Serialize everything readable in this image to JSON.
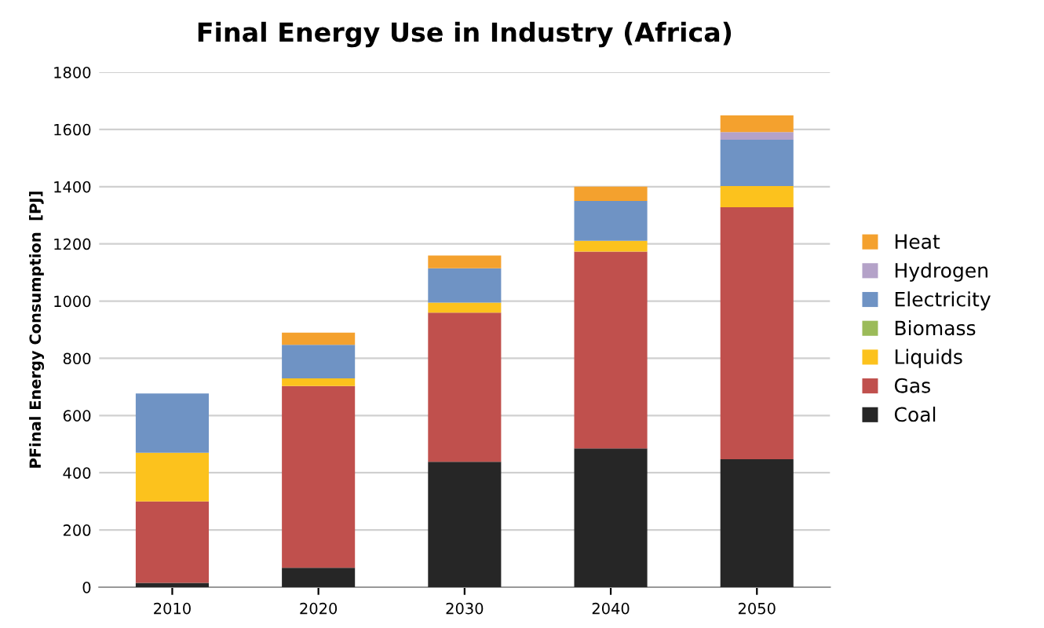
{
  "chart_data": {
    "type": "bar",
    "stacked": true,
    "title": "Final Energy Use in Industry (Africa)",
    "ylabel": "PFinal Energy Consumption  [PJ]",
    "categories": [
      "2010",
      "2020",
      "2030",
      "2040",
      "2050"
    ],
    "series": [
      {
        "name": "Coal",
        "color": "#262626",
        "values": [
          15,
          68,
          438,
          485,
          447
        ]
      },
      {
        "name": "Gas",
        "color": "#c0504d",
        "values": [
          285,
          635,
          522,
          688,
          881
        ]
      },
      {
        "name": "Liquids",
        "color": "#fcc21d",
        "values": [
          170,
          27,
          35,
          38,
          74
        ]
      },
      {
        "name": "Biomass",
        "color": "#9bbb59",
        "values": [
          0,
          0,
          0,
          0,
          0
        ]
      },
      {
        "name": "Electricity",
        "color": "#6f93c4",
        "values": [
          207,
          117,
          120,
          139,
          162
        ]
      },
      {
        "name": "Hydrogen",
        "color": "#b4a2c8",
        "values": [
          0,
          0,
          0,
          0,
          27
        ]
      },
      {
        "name": "Heat",
        "color": "#f4a12e",
        "values": [
          0,
          43,
          44,
          50,
          58
        ]
      }
    ],
    "ylim": [
      0,
      1800
    ],
    "yticks": [
      0,
      200,
      400,
      600,
      800,
      1000,
      1200,
      1400,
      1600,
      1800
    ],
    "grid": "y",
    "legend": "right"
  }
}
